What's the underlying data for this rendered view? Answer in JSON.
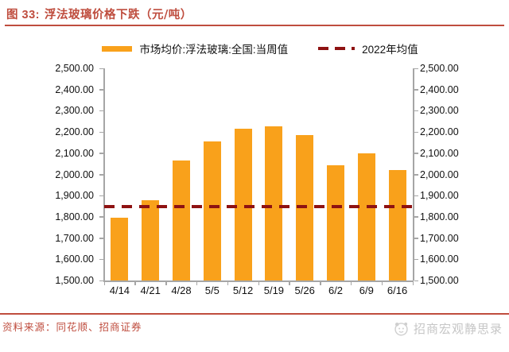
{
  "figure": {
    "title_prefix": "图 33:",
    "title_text": "浮法玻璃价格下跌（元/吨）"
  },
  "legend": {
    "series1_label": "市场均价:浮法玻璃:全国:当周值",
    "series2_label": "2022年均值"
  },
  "chart_data": {
    "type": "bar",
    "title": "浮法玻璃价格下跌（元/吨）",
    "categories": [
      "4/14",
      "4/21",
      "4/28",
      "5/5",
      "5/12",
      "5/19",
      "5/26",
      "6/2",
      "6/9",
      "6/16"
    ],
    "series": [
      {
        "name": "市场均价:浮法玻璃:全国:当周值",
        "type": "bar",
        "color": "#F9A11B",
        "values": [
          1795,
          1879,
          2064,
          2155,
          2214,
          2226,
          2186,
          2043,
          2100,
          2022
        ]
      }
    ],
    "avg_line": {
      "name": "2022年均值",
      "value": 1849,
      "color": "#8E1212",
      "style": "dashed"
    },
    "ylim": [
      1500,
      2500
    ],
    "ytick_step": 100,
    "ytick_labels": [
      "2,500.00",
      "2,400.00",
      "2,300.00",
      "2,200.00",
      "2,100.00",
      "2,000.00",
      "1,900.00",
      "1,800.00",
      "1,700.00",
      "1,600.00",
      "1,500.00"
    ],
    "y_axis_sides": "both",
    "grid": false,
    "legend_position": "top"
  },
  "footer": {
    "source_text": "资料来源：同花顺、招商证券"
  },
  "watermark": {
    "text": "招商宏观静思录"
  },
  "colors": {
    "accent_red": "#BF4D3E",
    "bar_orange": "#F9A11B",
    "dash_red": "#8E1212",
    "axis_gray": "#A6A6A6",
    "watermark_gray": "#C6C6C6"
  }
}
